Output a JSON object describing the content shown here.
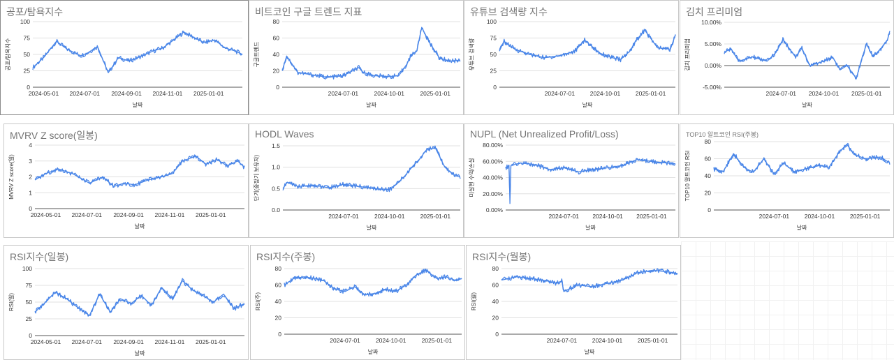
{
  "chart_data": [
    {
      "id": "fear-greed",
      "type": "line",
      "title": "공포/탐욕지수",
      "ylabel": "공포/탐욕지수",
      "xlabel": "날짜",
      "ylim": [
        0,
        100
      ],
      "yticks": [
        "0",
        "25",
        "50",
        "75",
        "100"
      ],
      "ytick_values": [
        0,
        25,
        50,
        75,
        100
      ],
      "x_range": [
        "2024-04-15",
        "2025-02-20"
      ],
      "xticks": [
        "2024-05-01",
        "2024-07-01",
        "2024-09-01",
        "2024-11-01",
        "2025-01-01"
      ],
      "series": [
        {
          "values_x": [
            "2024-04-15",
            "2024-05-01",
            "2024-05-20",
            "2024-06-05",
            "2024-06-25",
            "2024-07-05",
            "2024-07-20",
            "2024-08-05",
            "2024-08-20",
            "2024-09-05",
            "2024-09-25",
            "2024-10-10",
            "2024-10-25",
            "2024-11-10",
            "2024-11-25",
            "2024-12-10",
            "2024-12-25",
            "2025-01-10",
            "2025-01-25",
            "2025-02-10",
            "2025-02-20"
          ],
          "values": [
            30,
            45,
            70,
            58,
            48,
            52,
            62,
            22,
            45,
            40,
            48,
            55,
            60,
            72,
            84,
            76,
            68,
            72,
            60,
            55,
            50
          ]
        }
      ]
    },
    {
      "id": "google-trend",
      "type": "line",
      "title": "비트코인 구글 트렌드 지표",
      "ylabel": "구글트렌드",
      "xlabel": "날짜",
      "ylim": [
        0,
        80
      ],
      "yticks": [
        "0",
        "20",
        "40",
        "60",
        "80"
      ],
      "ytick_values": [
        0,
        20,
        40,
        60,
        80
      ],
      "x_range": [
        "2024-03-01",
        "2025-02-20"
      ],
      "xticks": [
        "2024-07-01",
        "2024-10-01",
        "2025-01-01"
      ],
      "series": [
        {
          "values_x": [
            "2024-03-01",
            "2024-03-10",
            "2024-04-01",
            "2024-05-01",
            "2024-06-01",
            "2024-07-01",
            "2024-08-01",
            "2024-08-10",
            "2024-09-01",
            "2024-10-01",
            "2024-10-20",
            "2024-11-05",
            "2024-11-15",
            "2024-11-25",
            "2024-12-05",
            "2024-12-20",
            "2025-01-10",
            "2025-02-01",
            "2025-02-20"
          ],
          "values": [
            20,
            38,
            18,
            15,
            12,
            14,
            24,
            18,
            14,
            13,
            14,
            28,
            40,
            44,
            73,
            55,
            35,
            32,
            33
          ]
        }
      ]
    },
    {
      "id": "youtube",
      "type": "line",
      "title": "유튜브 검색량 지수",
      "ylabel": "유튜브 검색량",
      "xlabel": "날짜",
      "ylim": [
        0,
        100
      ],
      "yticks": [
        "0",
        "25",
        "50",
        "75",
        "100"
      ],
      "ytick_values": [
        0,
        25,
        50,
        75,
        100
      ],
      "x_range": [
        "2024-03-01",
        "2025-02-20"
      ],
      "xticks": [
        "2024-07-01",
        "2024-10-01",
        "2025-01-01"
      ],
      "series": [
        {
          "values_x": [
            "2024-03-01",
            "2024-03-10",
            "2024-04-01",
            "2024-05-01",
            "2024-06-01",
            "2024-07-01",
            "2024-08-01",
            "2024-08-20",
            "2024-09-20",
            "2024-10-15",
            "2024-11-01",
            "2024-11-20",
            "2024-12-01",
            "2024-12-20",
            "2025-01-15",
            "2025-02-10",
            "2025-02-20"
          ],
          "values": [
            55,
            70,
            58,
            50,
            45,
            48,
            55,
            72,
            52,
            45,
            42,
            55,
            70,
            87,
            60,
            58,
            80
          ]
        }
      ]
    },
    {
      "id": "kimchi",
      "type": "line",
      "title": "김치 프리미엄",
      "ylabel": "김치 프리미엄",
      "xlabel": "날짜",
      "ylim": [
        -5,
        10
      ],
      "yticks": [
        "-5.00%",
        "0.00%",
        "5.00%",
        "10.00%"
      ],
      "ytick_values": [
        -5,
        0,
        5,
        10
      ],
      "x_range": [
        "2024-03-01",
        "2025-02-20"
      ],
      "xticks": [
        "2024-07-01",
        "2024-10-01",
        "2025-01-01"
      ],
      "series": [
        {
          "values_x": [
            "2024-03-01",
            "2024-03-15",
            "2024-04-01",
            "2024-05-01",
            "2024-06-01",
            "2024-06-20",
            "2024-07-05",
            "2024-08-01",
            "2024-08-15",
            "2024-09-01",
            "2024-10-01",
            "2024-10-20",
            "2024-11-05",
            "2024-11-20",
            "2024-12-10",
            "2024-12-20",
            "2025-01-01",
            "2025-01-15",
            "2025-02-01",
            "2025-02-15",
            "2025-02-20"
          ],
          "values": [
            3,
            4,
            1,
            2,
            1,
            3,
            6,
            2,
            4,
            0,
            1,
            2,
            -1,
            0,
            -3,
            1,
            5,
            2,
            4,
            6,
            8
          ]
        }
      ]
    },
    {
      "id": "mvrv",
      "type": "line",
      "title": "MVRV Z score(일봉)",
      "ylabel": "MVRV Z score(일)",
      "xlabel": "날짜",
      "ylim": [
        0,
        4
      ],
      "yticks": [
        "0",
        "1",
        "2",
        "3",
        "4"
      ],
      "ytick_values": [
        0,
        1,
        2,
        3,
        4
      ],
      "x_range": [
        "2024-04-15",
        "2025-02-20"
      ],
      "xticks": [
        "2024-05-01",
        "2024-07-01",
        "2024-09-01",
        "2024-11-01",
        "2025-01-01"
      ],
      "series": [
        {
          "values_x": [
            "2024-04-15",
            "2024-05-01",
            "2024-05-20",
            "2024-06-10",
            "2024-07-05",
            "2024-07-25",
            "2024-08-10",
            "2024-08-25",
            "2024-09-10",
            "2024-09-30",
            "2024-10-20",
            "2024-11-05",
            "2024-11-20",
            "2024-12-10",
            "2024-12-25",
            "2025-01-10",
            "2025-01-25",
            "2025-02-10",
            "2025-02-20"
          ],
          "values": [
            1.8,
            2.2,
            2.5,
            2.2,
            1.6,
            2.0,
            1.4,
            1.6,
            1.5,
            1.8,
            2.0,
            2.2,
            3.0,
            3.3,
            2.8,
            3.1,
            2.7,
            3.0,
            2.6
          ]
        }
      ]
    },
    {
      "id": "hodl",
      "type": "line",
      "title": "HODL Waves",
      "ylabel": "단기(중장기 보유자)",
      "xlabel": "날짜",
      "ylim": [
        0,
        1.5
      ],
      "yticks": [
        "0.0",
        "0.5",
        "1.0",
        "1.5"
      ],
      "ytick_values": [
        0,
        0.5,
        1.0,
        1.5
      ],
      "x_range": [
        "2024-03-01",
        "2025-02-20"
      ],
      "xticks": [
        "2024-07-01",
        "2024-10-01",
        "2025-01-01"
      ],
      "series": [
        {
          "values_x": [
            "2024-03-01",
            "2024-03-10",
            "2024-04-01",
            "2024-05-01",
            "2024-06-01",
            "2024-07-01",
            "2024-08-01",
            "2024-09-01",
            "2024-10-01",
            "2024-10-15",
            "2024-11-01",
            "2024-11-15",
            "2024-12-01",
            "2024-12-15",
            "2025-01-01",
            "2025-01-20",
            "2025-02-10",
            "2025-02-20"
          ],
          "values": [
            0.5,
            0.65,
            0.55,
            0.58,
            0.52,
            0.6,
            0.55,
            0.5,
            0.48,
            0.6,
            0.8,
            1.0,
            1.2,
            1.42,
            1.45,
            1.0,
            0.8,
            0.77
          ]
        }
      ]
    },
    {
      "id": "nupl",
      "type": "line",
      "title": "NUPL (Net Unrealized Profit/Loss)",
      "ylabel": "미실현 수익/손실",
      "xlabel": "날짜",
      "ylim": [
        0,
        80
      ],
      "yticks": [
        "0.00%",
        "20.00%",
        "40.00%",
        "60.00%",
        "80.00%"
      ],
      "ytick_values": [
        0,
        20,
        40,
        60,
        80
      ],
      "x_range": [
        "2024-03-01",
        "2025-02-20"
      ],
      "xticks": [
        "2024-07-01",
        "2024-10-01",
        "2025-01-01"
      ],
      "series": [
        {
          "values_x": [
            "2024-03-01",
            "2024-03-08",
            "2024-03-10",
            "2024-03-12",
            "2024-04-01",
            "2024-05-01",
            "2024-06-01",
            "2024-07-01",
            "2024-08-01",
            "2024-09-01",
            "2024-10-01",
            "2024-11-01",
            "2024-12-01",
            "2025-01-01",
            "2025-02-01",
            "2025-02-20"
          ],
          "values": [
            52,
            55,
            8,
            55,
            58,
            56,
            50,
            52,
            47,
            50,
            52,
            55,
            62,
            60,
            58,
            57
          ]
        }
      ]
    },
    {
      "id": "top10",
      "type": "line",
      "title": "TOP10 알트코인 RSI(주봉)",
      "ylabel": "TOP10 알트코인 RSI",
      "xlabel": "날짜",
      "ylim": [
        0,
        80
      ],
      "yticks": [
        "0",
        "20",
        "40",
        "60",
        "80"
      ],
      "ytick_values": [
        0,
        20,
        40,
        60,
        80
      ],
      "x_range": [
        "2024-03-01",
        "2025-02-20"
      ],
      "xticks": [
        "2024-07-01",
        "2024-10-01",
        "2025-01-01"
      ],
      "series": [
        {
          "values_x": [
            "2024-03-01",
            "2024-03-20",
            "2024-04-10",
            "2024-05-01",
            "2024-05-20",
            "2024-06-10",
            "2024-07-01",
            "2024-07-20",
            "2024-08-10",
            "2024-09-01",
            "2024-10-01",
            "2024-10-20",
            "2024-11-10",
            "2024-11-25",
            "2024-12-10",
            "2025-01-01",
            "2025-02-01",
            "2025-02-20"
          ],
          "values": [
            48,
            45,
            66,
            50,
            44,
            60,
            42,
            55,
            45,
            48,
            52,
            50,
            68,
            77,
            65,
            60,
            62,
            55
          ]
        }
      ]
    },
    {
      "id": "rsi-daily",
      "type": "line",
      "title": "RSI지수(일봉)",
      "ylabel": "RSI(일)",
      "xlabel": "날짜",
      "ylim": [
        0,
        100
      ],
      "yticks": [
        "0",
        "25",
        "50",
        "75",
        "100"
      ],
      "ytick_values": [
        0,
        25,
        50,
        75,
        100
      ],
      "x_range": [
        "2024-04-15",
        "2025-02-20"
      ],
      "xticks": [
        "2024-05-01",
        "2024-07-01",
        "2024-09-01",
        "2024-11-01",
        "2025-01-01"
      ],
      "series": [
        {
          "values_x": [
            "2024-04-15",
            "2024-05-01",
            "2024-05-15",
            "2024-06-01",
            "2024-06-20",
            "2024-07-05",
            "2024-07-20",
            "2024-08-05",
            "2024-08-20",
            "2024-09-05",
            "2024-09-20",
            "2024-10-05",
            "2024-10-20",
            "2024-11-05",
            "2024-11-20",
            "2024-12-05",
            "2024-12-20",
            "2025-01-05",
            "2025-01-20",
            "2025-02-05",
            "2025-02-20"
          ],
          "values": [
            35,
            50,
            65,
            55,
            40,
            30,
            62,
            35,
            55,
            48,
            60,
            45,
            72,
            55,
            82,
            68,
            60,
            50,
            62,
            40,
            48
          ]
        }
      ]
    },
    {
      "id": "rsi-weekly",
      "type": "line",
      "title": "RSI지수(주봉)",
      "ylabel": "RSI(주)",
      "xlabel": "날짜",
      "ylim": [
        0,
        80
      ],
      "yticks": [
        "0",
        "20",
        "40",
        "60",
        "80"
      ],
      "ytick_values": [
        0,
        20,
        40,
        60,
        80
      ],
      "x_range": [
        "2024-03-01",
        "2025-02-20"
      ],
      "xticks": [
        "2024-07-01",
        "2024-10-01",
        "2025-01-01"
      ],
      "series": [
        {
          "values_x": [
            "2024-03-01",
            "2024-03-20",
            "2024-04-10",
            "2024-05-01",
            "2024-05-20",
            "2024-06-10",
            "2024-07-01",
            "2024-07-20",
            "2024-08-10",
            "2024-09-01",
            "2024-09-20",
            "2024-10-10",
            "2024-11-01",
            "2024-11-20",
            "2024-12-10",
            "2025-01-01",
            "2025-01-20",
            "2025-02-10",
            "2025-02-20"
          ],
          "values": [
            60,
            68,
            70,
            68,
            65,
            55,
            52,
            58,
            48,
            50,
            55,
            52,
            60,
            72,
            78,
            68,
            70,
            65,
            68
          ]
        }
      ]
    },
    {
      "id": "rsi-monthly",
      "type": "line",
      "title": "RSI지수(월봉)",
      "ylabel": "RSI(월)",
      "xlabel": "날짜",
      "ylim": [
        0,
        80
      ],
      "yticks": [
        "0",
        "20",
        "40",
        "60",
        "80"
      ],
      "ytick_values": [
        0,
        20,
        40,
        60,
        80
      ],
      "x_range": [
        "2024-03-01",
        "2025-02-20"
      ],
      "xticks": [
        "2024-07-01",
        "2024-10-01",
        "2025-01-01"
      ],
      "series": [
        {
          "values_x": [
            "2024-03-01",
            "2024-04-01",
            "2024-05-01",
            "2024-06-01",
            "2024-06-20",
            "2024-07-01",
            "2024-07-05",
            "2024-08-01",
            "2024-09-01",
            "2024-10-01",
            "2024-11-01",
            "2024-12-01",
            "2025-01-01",
            "2025-02-01",
            "2025-02-20"
          ],
          "values": [
            66,
            70,
            68,
            65,
            62,
            65,
            52,
            60,
            58,
            62,
            66,
            75,
            78,
            76,
            74
          ]
        }
      ]
    }
  ]
}
